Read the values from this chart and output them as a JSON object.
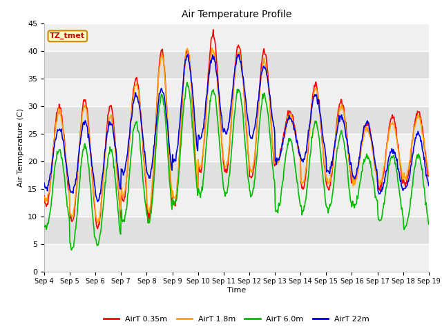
{
  "title": "Air Temperature Profile",
  "ylabel": "Air Temperature (C)",
  "ylabel_display": "Air Termperature (C)",
  "xlabel": "Time",
  "ylim": [
    0,
    45
  ],
  "yticks": [
    0,
    5,
    10,
    15,
    20,
    25,
    30,
    35,
    40,
    45
  ],
  "annotation": "TZ_tmet",
  "line_colors": [
    "#ff0000",
    "#ffa500",
    "#00bb00",
    "#0000dd"
  ],
  "line_labels": [
    "AirT 0.35m",
    "AirT 1.8m",
    "AirT 6.0m",
    "AirT 22m"
  ],
  "background_color": "#ffffff",
  "plot_bg_light": "#f0f0f0",
  "plot_bg_dark": "#e0e0e0",
  "xtick_labels": [
    "Sep 4",
    "Sep 5",
    "Sep 6",
    "Sep 7",
    "Sep 8",
    "Sep 9",
    "Sep 10",
    "Sep 11",
    "Sep 12",
    "Sep 13",
    "Sep 14",
    "Sep 15",
    "Sep 16",
    "Sep 17",
    "Sep 18",
    "Sep 19"
  ],
  "num_days": 15,
  "pts_per_day": 48
}
